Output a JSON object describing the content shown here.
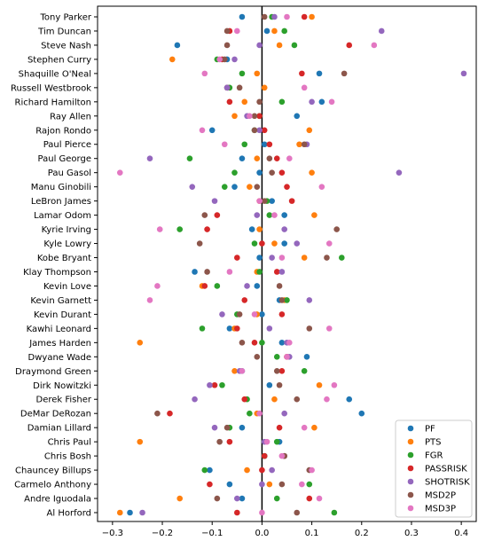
{
  "chart_data": {
    "type": "scatter",
    "xlim": [
      -0.33,
      0.43
    ],
    "xticks": [
      -0.3,
      -0.2,
      -0.1,
      0.0,
      0.1,
      0.2,
      0.3,
      0.4
    ],
    "xtick_labels": [
      "−0.3",
      "−0.2",
      "−0.1",
      "0.0",
      "0.1",
      "0.2",
      "0.3",
      "0.4"
    ],
    "zero_line": 0,
    "grid": false,
    "legend_position": "lower-right",
    "categories": [
      "Tony Parker",
      "Tim Duncan",
      "Steve Nash",
      "Stephen Curry",
      "Shaquille O'Neal",
      "Russell Westbrook",
      "Richard Hamilton",
      "Ray Allen",
      "Rajon Rondo",
      "Paul Pierce",
      "Paul George",
      "Pau Gasol",
      "Manu Ginobili",
      "LeBron James",
      "Lamar Odom",
      "Kyrie Irving",
      "Kyle Lowry",
      "Kobe Bryant",
      "Klay Thompson",
      "Kevin Love",
      "Kevin Garnett",
      "Kevin Durant",
      "Kawhi Leonard",
      "James Harden",
      "Dwyane Wade",
      "Draymond Green",
      "Dirk Nowitzki",
      "Derek Fisher",
      "DeMar DeRozan",
      "Damian Lillard",
      "Chris Paul",
      "Chris Bosh",
      "Chauncey Billups",
      "Carmelo Anthony",
      "Andre Iguodala",
      "Al Horford"
    ],
    "series": [
      {
        "name": "PF",
        "color": "#1f77b4",
        "values": [
          -0.04,
          0.01,
          -0.17,
          -0.07,
          0.115,
          -0.07,
          0.12,
          0.07,
          -0.1,
          0.005,
          -0.04,
          -0.005,
          -0.055,
          0.02,
          0.045,
          -0.02,
          0.045,
          -0.005,
          -0.135,
          -0.01,
          0.035,
          0.0,
          -0.065,
          0.04,
          0.09,
          -0.04,
          0.015,
          0.175,
          0.2,
          -0.04,
          0.035,
          0.005,
          -0.105,
          -0.065,
          -0.04,
          -0.265
        ]
      },
      {
        "name": "PTS",
        "color": "#ff7f0e",
        "values": [
          0.1,
          0.025,
          0.035,
          -0.18,
          -0.01,
          0.005,
          -0.035,
          -0.055,
          0.095,
          0.075,
          -0.01,
          0.1,
          -0.025,
          -0.005,
          0.105,
          -0.005,
          0.025,
          0.085,
          -0.01,
          -0.12,
          0.045,
          -0.01,
          -0.055,
          -0.245,
          0.05,
          -0.055,
          0.115,
          0.025,
          -0.01,
          0.105,
          -0.245,
          0.045,
          -0.03,
          0.015,
          -0.165,
          -0.285
        ]
      },
      {
        "name": "FGR",
        "color": "#2ca02c",
        "values": [
          0.02,
          0.045,
          0.065,
          -0.09,
          -0.04,
          -0.065,
          0.04,
          -0.005,
          -0.015,
          -0.035,
          -0.145,
          -0.055,
          -0.075,
          0.01,
          0.015,
          -0.165,
          -0.015,
          0.16,
          -0.005,
          -0.09,
          0.05,
          -0.05,
          -0.12,
          0.0,
          0.03,
          0.085,
          -0.08,
          -0.03,
          -0.025,
          -0.065,
          0.03,
          0.005,
          -0.115,
          0.095,
          0.03,
          0.145
        ]
      },
      {
        "name": "PASSRISK",
        "color": "#d62728",
        "values": [
          0.085,
          -0.065,
          0.175,
          -0.08,
          0.08,
          -0.07,
          -0.065,
          -0.005,
          0.005,
          0.015,
          0.03,
          0.04,
          0.05,
          0.06,
          -0.09,
          -0.11,
          0.0,
          -0.05,
          0.03,
          -0.115,
          -0.035,
          0.04,
          -0.05,
          -0.015,
          0.05,
          0.04,
          -0.095,
          -0.035,
          -0.185,
          0.035,
          -0.065,
          0.005,
          0.0,
          -0.105,
          0.095,
          -0.05
        ]
      },
      {
        "name": "SHOTRISK",
        "color": "#9467bd",
        "values": [
          0.025,
          0.24,
          -0.005,
          -0.055,
          0.405,
          -0.07,
          0.1,
          -0.03,
          -0.005,
          0.09,
          -0.225,
          0.275,
          -0.14,
          -0.095,
          -0.01,
          0.045,
          0.07,
          0.02,
          0.04,
          -0.03,
          0.095,
          -0.08,
          0.015,
          0.05,
          0.055,
          -0.045,
          -0.105,
          -0.135,
          0.045,
          -0.095,
          0.005,
          0.045,
          0.02,
          0.0,
          -0.05,
          -0.24
        ]
      },
      {
        "name": "MSD2P",
        "color": "#8c564b",
        "values": [
          0.005,
          -0.07,
          -0.07,
          -0.075,
          0.165,
          -0.045,
          -0.005,
          -0.015,
          -0.015,
          0.085,
          0.015,
          0.02,
          -0.01,
          0.005,
          -0.115,
          0.15,
          -0.125,
          0.13,
          -0.11,
          0.035,
          0.04,
          -0.045,
          0.095,
          -0.04,
          -0.01,
          0.03,
          0.035,
          0.07,
          -0.21,
          -0.07,
          -0.085,
          0.045,
          0.095,
          0.04,
          -0.09,
          0.07
        ]
      },
      {
        "name": "MSD3P",
        "color": "#e377c2",
        "values": [
          0.05,
          -0.05,
          0.225,
          -0.085,
          -0.115,
          0.085,
          0.14,
          -0.025,
          -0.12,
          -0.075,
          0.055,
          -0.285,
          0.12,
          -0.005,
          0.025,
          -0.205,
          0.135,
          0.04,
          -0.065,
          -0.21,
          -0.225,
          -0.015,
          0.135,
          0.055,
          0.05,
          -0.04,
          0.145,
          0.13,
          -0.005,
          0.085,
          0.01,
          0.04,
          0.1,
          0.08,
          0.115,
          0.0
        ]
      }
    ]
  }
}
